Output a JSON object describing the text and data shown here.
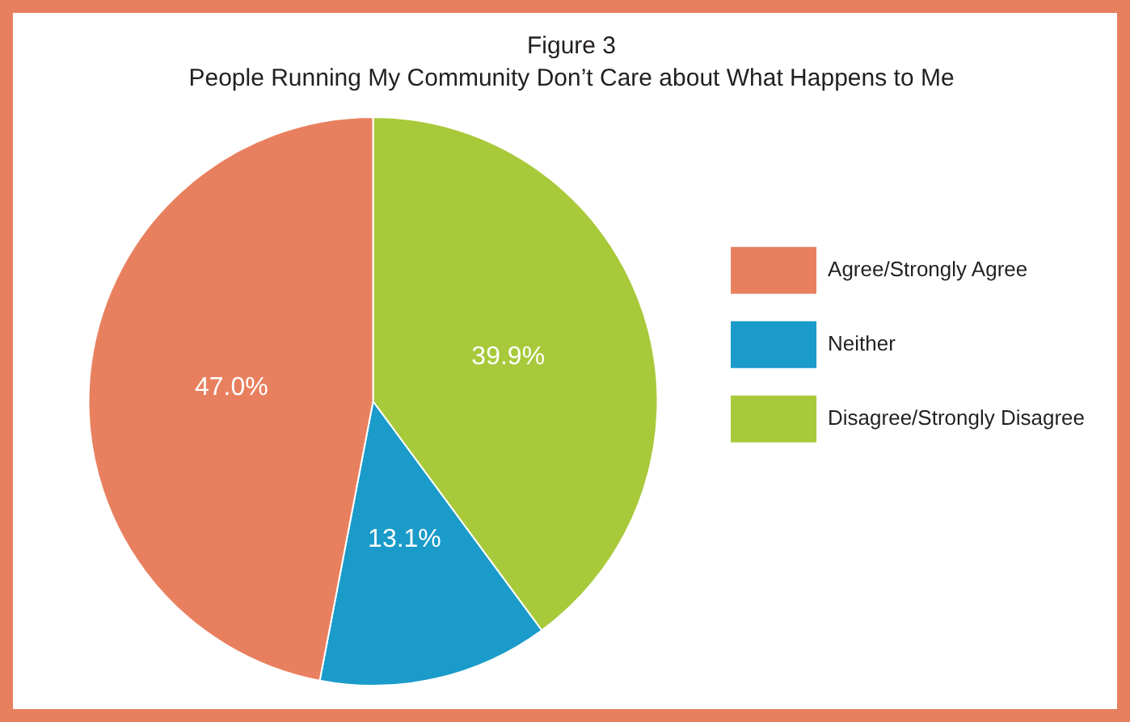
{
  "chart_data": {
    "type": "pie",
    "title": "Figure 3",
    "subtitle": "People Running My Community Don’t Care about What Happens to Me",
    "categories": [
      "Agree/Strongly Agree",
      "Neither",
      "Disagree/Strongly Disagree"
    ],
    "values": [
      47.0,
      13.1,
      39.9
    ],
    "value_labels": [
      "47.0%",
      "13.1%",
      "39.9%"
    ],
    "colors": [
      "#e8805f",
      "#1a9bc9",
      "#a8c93a"
    ],
    "legend": "right"
  }
}
